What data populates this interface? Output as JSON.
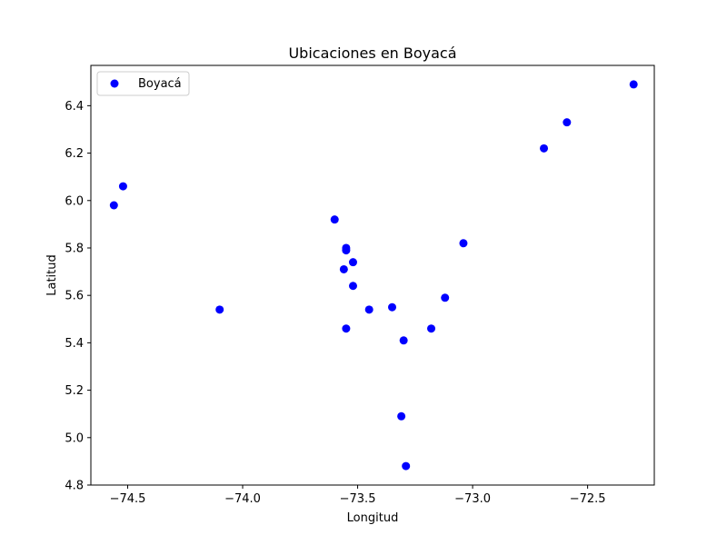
{
  "chart_data": {
    "type": "scatter",
    "title": "Ubicaciones en Boyacá",
    "xlabel": "Longitud",
    "ylabel": "Latitud",
    "xlim": [
      -74.66,
      -72.21
    ],
    "ylim": [
      4.8,
      6.57
    ],
    "xticks": [
      -74.5,
      -74.0,
      -73.5,
      -73.0,
      -72.5
    ],
    "xtick_labels": [
      "−74.5",
      "−74.0",
      "−73.5",
      "−73.0",
      "−72.5"
    ],
    "yticks": [
      4.8,
      5.0,
      5.2,
      5.4,
      5.6,
      5.8,
      6.0,
      6.2,
      6.4
    ],
    "ytick_labels": [
      "4.8",
      "5.0",
      "5.2",
      "5.4",
      "5.6",
      "5.8",
      "6.0",
      "6.2",
      "6.4"
    ],
    "grid": false,
    "legend_position": "upper-left",
    "series": [
      {
        "name": "Boyacá",
        "color": "#0000ff",
        "points": [
          {
            "x": -74.56,
            "y": 5.98
          },
          {
            "x": -74.52,
            "y": 6.06
          },
          {
            "x": -74.1,
            "y": 5.54
          },
          {
            "x": -73.6,
            "y": 5.92
          },
          {
            "x": -73.55,
            "y": 5.8
          },
          {
            "x": -73.55,
            "y": 5.79
          },
          {
            "x": -73.52,
            "y": 5.74
          },
          {
            "x": -73.56,
            "y": 5.71
          },
          {
            "x": -73.52,
            "y": 5.64
          },
          {
            "x": -73.45,
            "y": 5.54
          },
          {
            "x": -73.35,
            "y": 5.55
          },
          {
            "x": -73.55,
            "y": 5.46
          },
          {
            "x": -73.3,
            "y": 5.41
          },
          {
            "x": -73.18,
            "y": 5.46
          },
          {
            "x": -73.12,
            "y": 5.59
          },
          {
            "x": -73.04,
            "y": 5.82
          },
          {
            "x": -73.31,
            "y": 5.09
          },
          {
            "x": -73.29,
            "y": 4.88
          },
          {
            "x": -72.69,
            "y": 6.22
          },
          {
            "x": -72.59,
            "y": 6.33
          },
          {
            "x": -72.3,
            "y": 6.49
          }
        ]
      }
    ]
  }
}
